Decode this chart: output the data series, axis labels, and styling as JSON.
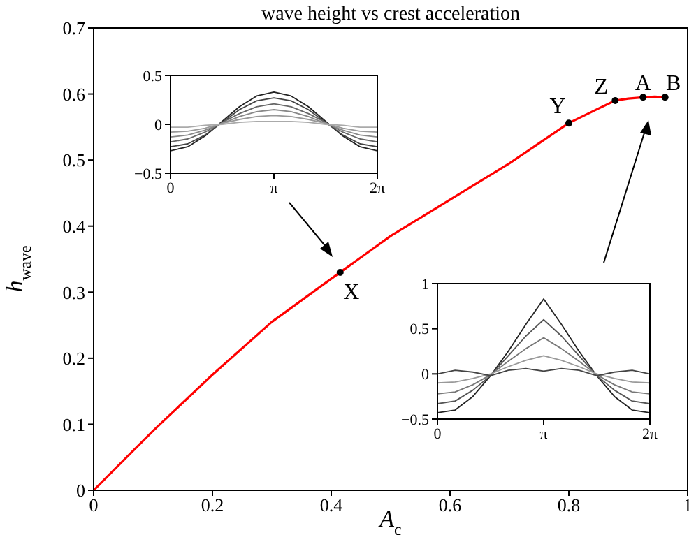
{
  "chart_data": [
    {
      "type": "line",
      "title": "wave height  vs  crest acceleration",
      "xlabel": "A$_{c}$",
      "ylabel": "h$_{wave}$",
      "xlim": [
        0,
        1
      ],
      "xticks": [
        0,
        0.2,
        0.4,
        0.6,
        0.8,
        1
      ],
      "ylim": [
        0,
        0.7
      ],
      "yticks": [
        0,
        0.1,
        0.2,
        0.3,
        0.4,
        0.5,
        0.6,
        0.7
      ],
      "series": [
        {
          "color": "#ff0000",
          "x": [
            0,
            0.05,
            0.1,
            0.2,
            0.3,
            0.415,
            0.5,
            0.6,
            0.7,
            0.8,
            0.85,
            0.878,
            0.9,
            0.925,
            0.945,
            0.962
          ],
          "values": [
            0,
            0.045,
            0.09,
            0.175,
            0.255,
            0.33,
            0.385,
            0.44,
            0.495,
            0.556,
            0.578,
            0.59,
            0.593,
            0.595,
            0.596,
            0.595
          ]
        },
        {
          "type": "scatter",
          "marker": "circle",
          "color": "#000000",
          "x": [
            0.415,
            0.8,
            0.878,
            0.925,
            0.962
          ],
          "values": [
            0.33,
            0.556,
            0.59,
            0.595,
            0.595
          ]
        }
      ],
      "annotations": [
        {
          "text": "X",
          "x": 0.415,
          "y": 0.33
        },
        {
          "text": "Y",
          "x": 0.8,
          "y": 0.556
        },
        {
          "text": "Z",
          "x": 0.878,
          "y": 0.59
        },
        {
          "text": "A",
          "x": 0.925,
          "y": 0.595
        },
        {
          "text": "B",
          "x": 0.962,
          "y": 0.595
        }
      ]
    },
    {
      "type": "line",
      "xlim": [
        0,
        6.2832
      ],
      "xticks": [
        {
          "value": 0,
          "label": "0"
        },
        {
          "value": 3.1416,
          "label": "π"
        },
        {
          "value": 6.2832,
          "label": "2π"
        }
      ],
      "ylim": [
        -0.5,
        0.5
      ],
      "yticks": [
        {
          "value": -0.5,
          "label": "−0.5"
        },
        0,
        0.5
      ],
      "x": [
        0,
        0.5236,
        1.0472,
        1.5708,
        2.0944,
        2.618,
        3.1416,
        3.6652,
        4.1888,
        4.7124,
        5.236,
        5.7596,
        6.2832
      ],
      "series": [
        {
          "color": "#222222",
          "values": [
            -0.27,
            -0.23,
            -0.12,
            0.03,
            0.18,
            0.29,
            0.33,
            0.29,
            0.18,
            0.03,
            -0.12,
            -0.23,
            -0.27
          ]
        },
        {
          "color": "#444444",
          "values": [
            -0.23,
            -0.2,
            -0.11,
            0.02,
            0.15,
            0.24,
            0.27,
            0.24,
            0.15,
            0.02,
            -0.11,
            -0.2,
            -0.23
          ]
        },
        {
          "color": "#666666",
          "values": [
            -0.18,
            -0.15,
            -0.08,
            0.02,
            0.11,
            0.18,
            0.21,
            0.18,
            0.11,
            0.02,
            -0.08,
            -0.15,
            -0.18
          ]
        },
        {
          "color": "#888888",
          "values": [
            -0.13,
            -0.11,
            -0.06,
            0.01,
            0.08,
            0.13,
            0.15,
            0.13,
            0.08,
            0.01,
            -0.06,
            -0.11,
            -0.13
          ]
        },
        {
          "color": "#999999",
          "values": [
            -0.08,
            -0.07,
            -0.04,
            0.01,
            0.05,
            0.08,
            0.09,
            0.08,
            0.05,
            0.01,
            -0.04,
            -0.07,
            -0.08
          ]
        },
        {
          "color": "#aaaaaa",
          "values": [
            -0.03,
            -0.03,
            -0.01,
            0,
            0.02,
            0.03,
            0.03,
            0.03,
            0.02,
            0,
            -0.01,
            -0.03,
            -0.03
          ]
        }
      ]
    },
    {
      "type": "line",
      "xlim": [
        0,
        6.2832
      ],
      "xticks": [
        {
          "value": 0,
          "label": "0"
        },
        {
          "value": 3.1416,
          "label": "π"
        },
        {
          "value": 6.2832,
          "label": "2π"
        }
      ],
      "ylim": [
        -0.5,
        1
      ],
      "yticks": [
        {
          "value": -0.5,
          "label": "−0.5"
        },
        0,
        0.5,
        1
      ],
      "x": [
        0,
        0.5236,
        1.0472,
        1.5708,
        2.0944,
        2.618,
        3.1416,
        3.6652,
        4.1888,
        4.7124,
        5.236,
        5.7596,
        6.2832
      ],
      "series": [
        {
          "color": "#222222",
          "values": [
            -0.43,
            -0.4,
            -0.25,
            -0.02,
            0.25,
            0.55,
            0.83,
            0.55,
            0.25,
            -0.02,
            -0.25,
            -0.4,
            -0.43
          ]
        },
        {
          "color": "#555555",
          "values": [
            -0.33,
            -0.3,
            -0.18,
            -0.02,
            0.2,
            0.42,
            0.6,
            0.42,
            0.2,
            -0.02,
            -0.18,
            -0.3,
            -0.33
          ]
        },
        {
          "color": "#777777",
          "values": [
            -0.22,
            -0.2,
            -0.12,
            -0.01,
            0.14,
            0.28,
            0.4,
            0.28,
            0.14,
            -0.01,
            -0.12,
            -0.2,
            -0.22
          ]
        },
        {
          "color": "#999999",
          "values": [
            -0.1,
            -0.09,
            -0.05,
            0,
            0.08,
            0.15,
            0.2,
            0.15,
            0.08,
            0,
            -0.05,
            -0.09,
            -0.1
          ]
        },
        {
          "color": "#444444",
          "values": [
            0,
            0.04,
            0.02,
            -0.02,
            0.04,
            0.06,
            0.03,
            0.06,
            0.04,
            -0.02,
            0.02,
            0.04,
            0
          ]
        }
      ]
    }
  ]
}
